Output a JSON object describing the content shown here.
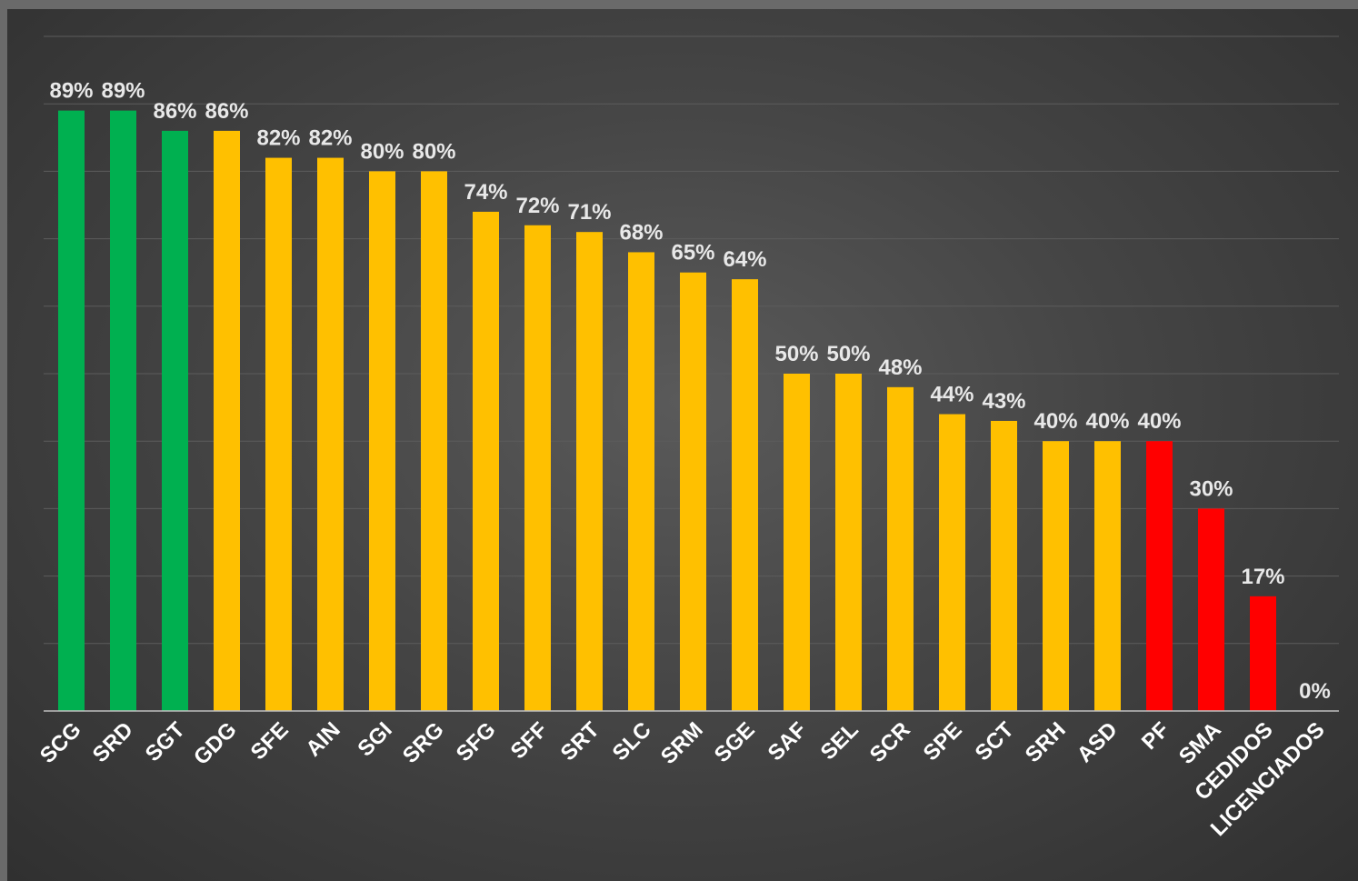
{
  "chart_data": {
    "type": "bar",
    "title": "",
    "xlabel": "",
    "ylabel": "",
    "ylim": [
      0,
      100
    ],
    "grid": true,
    "categories": [
      "SCG",
      "SRD",
      "SGT",
      "GDG",
      "SFE",
      "AIN",
      "SGI",
      "SRG",
      "SFG",
      "SFF",
      "SRT",
      "SLC",
      "SRM",
      "SGE",
      "SAF",
      "SEL",
      "SCR",
      "SPE",
      "SCT",
      "SRH",
      "ASD",
      "PF",
      "SMA",
      "CEDIDOS",
      "LICENCIADOS"
    ],
    "values": [
      89,
      89,
      86,
      86,
      82,
      82,
      80,
      80,
      74,
      72,
      71,
      68,
      65,
      64,
      50,
      50,
      48,
      44,
      43,
      40,
      40,
      40,
      30,
      17,
      0
    ],
    "value_labels": [
      "89%",
      "89%",
      "86%",
      "86%",
      "82%",
      "82%",
      "80%",
      "80%",
      "74%",
      "72%",
      "71%",
      "68%",
      "65%",
      "64%",
      "50%",
      "50%",
      "48%",
      "44%",
      "43%",
      "40%",
      "40%",
      "40%",
      "30%",
      "17%",
      "0%"
    ],
    "bar_colors": [
      "#00b050",
      "#00b050",
      "#00b050",
      "#ffc000",
      "#ffc000",
      "#ffc000",
      "#ffc000",
      "#ffc000",
      "#ffc000",
      "#ffc000",
      "#ffc000",
      "#ffc000",
      "#ffc000",
      "#ffc000",
      "#ffc000",
      "#ffc000",
      "#ffc000",
      "#ffc000",
      "#ffc000",
      "#ffc000",
      "#ffc000",
      "#ff0000",
      "#ff0000",
      "#ff0000",
      "#ff0000"
    ]
  },
  "colors": {
    "green": "#00b050",
    "yellow": "#ffc000",
    "red": "#ff0000",
    "gridline": "#5c5c5c",
    "axis": "#bfbfbf",
    "label_text": "#e8e8e8"
  }
}
